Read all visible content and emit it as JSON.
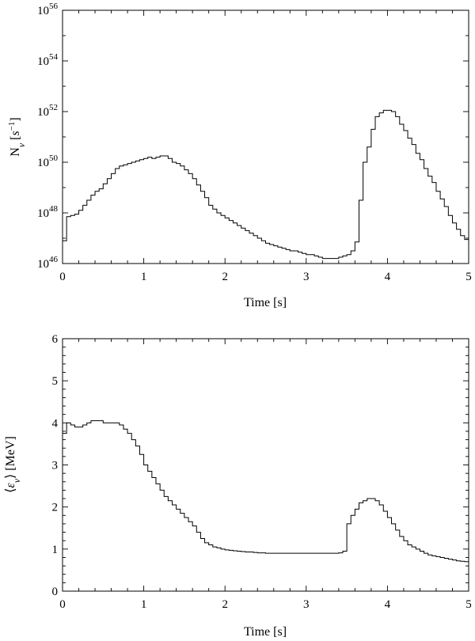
{
  "chart_data": [
    {
      "type": "line",
      "step": true,
      "scale_y": "log",
      "xlabel": "Time [s]",
      "ylabel_html": "N<tspan font-style='italic' baseline-shift='sub' font-size='12'>ν</tspan> [<tspan font-style='italic'>s</tspan><tspan baseline-shift='super' font-size='11'>−1</tspan>]",
      "xlim": [
        0,
        5
      ],
      "ylim_exp": [
        46,
        56
      ],
      "xticks": [
        0,
        1,
        2,
        3,
        4,
        5
      ],
      "yticks_exp": [
        46,
        48,
        50,
        52,
        54,
        56
      ],
      "grid": false,
      "series": [
        {
          "step_width": 0.05,
          "x": [
            0.0,
            0.05,
            0.1,
            0.15,
            0.2,
            0.25,
            0.3,
            0.35,
            0.4,
            0.45,
            0.5,
            0.55,
            0.6,
            0.65,
            0.7,
            0.75,
            0.8,
            0.85,
            0.9,
            0.95,
            1.0,
            1.05,
            1.1,
            1.15,
            1.2,
            1.25,
            1.3,
            1.35,
            1.4,
            1.45,
            1.5,
            1.55,
            1.6,
            1.65,
            1.7,
            1.75,
            1.8,
            1.85,
            1.9,
            1.95,
            2.0,
            2.05,
            2.1,
            2.15,
            2.2,
            2.25,
            2.3,
            2.35,
            2.4,
            2.45,
            2.5,
            2.55,
            2.6,
            2.65,
            2.7,
            2.75,
            2.8,
            2.85,
            2.9,
            2.95,
            3.0,
            3.05,
            3.1,
            3.15,
            3.2,
            3.25,
            3.3,
            3.35,
            3.4,
            3.45,
            3.5,
            3.55,
            3.6,
            3.65,
            3.7,
            3.75,
            3.8,
            3.85,
            3.9,
            3.95,
            4.0,
            4.05,
            4.1,
            4.15,
            4.2,
            4.25,
            4.3,
            4.35,
            4.4,
            4.45,
            4.5,
            4.55,
            4.6,
            4.65,
            4.7,
            4.75,
            4.8,
            4.85,
            4.9,
            4.95
          ],
          "log10_y": [
            46.9,
            47.85,
            47.9,
            47.95,
            48.1,
            48.3,
            48.5,
            48.7,
            48.85,
            48.95,
            49.15,
            49.35,
            49.55,
            49.75,
            49.85,
            49.9,
            49.95,
            50.0,
            50.05,
            50.1,
            50.15,
            50.2,
            50.15,
            50.2,
            50.25,
            50.25,
            50.15,
            50.0,
            49.95,
            49.85,
            49.7,
            49.55,
            49.35,
            49.1,
            48.85,
            48.6,
            48.3,
            48.15,
            48.0,
            47.9,
            47.8,
            47.7,
            47.6,
            47.5,
            47.4,
            47.3,
            47.2,
            47.1,
            47.0,
            46.9,
            46.8,
            46.75,
            46.7,
            46.65,
            46.6,
            46.55,
            46.5,
            46.5,
            46.45,
            46.4,
            46.35,
            46.35,
            46.3,
            46.25,
            46.2,
            46.2,
            46.2,
            46.2,
            46.25,
            46.3,
            46.35,
            46.5,
            46.85,
            48.5,
            50.0,
            50.6,
            51.3,
            51.8,
            51.95,
            52.05,
            52.05,
            52.0,
            51.8,
            51.5,
            51.25,
            50.95,
            50.7,
            50.35,
            50.1,
            49.75,
            49.45,
            49.2,
            48.85,
            48.55,
            48.25,
            47.9,
            47.6,
            47.35,
            47.1,
            46.95
          ]
        }
      ]
    },
    {
      "type": "line",
      "step": true,
      "xlabel": "Time [s]",
      "ylabel_html": "⟨<tspan font-style='italic'>ε</tspan><tspan font-style='italic' baseline-shift='sub' font-size='12'>ν</tspan>⟩ [MeV]",
      "xlim": [
        0,
        5
      ],
      "ylim": [
        0,
        6
      ],
      "xticks": [
        0,
        1,
        2,
        3,
        4,
        5
      ],
      "yticks": [
        0,
        1,
        2,
        3,
        4,
        5,
        6
      ],
      "grid": false,
      "series": [
        {
          "step_width": 0.05,
          "x": [
            0.0,
            0.05,
            0.1,
            0.15,
            0.2,
            0.25,
            0.3,
            0.35,
            0.4,
            0.45,
            0.5,
            0.55,
            0.6,
            0.65,
            0.7,
            0.75,
            0.8,
            0.85,
            0.9,
            0.95,
            1.0,
            1.05,
            1.1,
            1.15,
            1.2,
            1.25,
            1.3,
            1.35,
            1.4,
            1.45,
            1.5,
            1.55,
            1.6,
            1.65,
            1.7,
            1.75,
            1.8,
            1.85,
            1.9,
            1.95,
            2.0,
            2.05,
            2.1,
            2.15,
            2.2,
            2.25,
            2.3,
            2.35,
            2.4,
            2.45,
            2.5,
            2.55,
            2.6,
            2.65,
            2.7,
            2.75,
            2.8,
            2.85,
            2.9,
            2.95,
            3.0,
            3.05,
            3.1,
            3.15,
            3.2,
            3.25,
            3.3,
            3.35,
            3.4,
            3.45,
            3.5,
            3.55,
            3.6,
            3.65,
            3.7,
            3.75,
            3.8,
            3.85,
            3.9,
            3.95,
            4.0,
            4.05,
            4.1,
            4.15,
            4.2,
            4.25,
            4.3,
            4.35,
            4.4,
            4.45,
            4.5,
            4.55,
            4.6,
            4.65,
            4.7,
            4.75,
            4.8,
            4.85,
            4.9,
            4.95
          ],
          "y": [
            3.75,
            4.0,
            3.95,
            3.9,
            3.9,
            3.95,
            4.0,
            4.05,
            4.05,
            4.05,
            4.0,
            4.0,
            4.0,
            4.0,
            3.95,
            3.85,
            3.75,
            3.6,
            3.45,
            3.25,
            3.0,
            2.85,
            2.7,
            2.55,
            2.4,
            2.25,
            2.15,
            2.05,
            1.95,
            1.85,
            1.75,
            1.65,
            1.55,
            1.4,
            1.25,
            1.15,
            1.1,
            1.05,
            1.03,
            1.0,
            0.98,
            0.97,
            0.96,
            0.95,
            0.94,
            0.93,
            0.93,
            0.92,
            0.91,
            0.91,
            0.9,
            0.9,
            0.9,
            0.9,
            0.9,
            0.9,
            0.9,
            0.9,
            0.9,
            0.9,
            0.9,
            0.9,
            0.9,
            0.9,
            0.9,
            0.9,
            0.9,
            0.9,
            0.91,
            0.95,
            1.6,
            1.8,
            1.95,
            2.1,
            2.15,
            2.2,
            2.2,
            2.15,
            2.05,
            1.9,
            1.75,
            1.6,
            1.45,
            1.3,
            1.2,
            1.1,
            1.05,
            1.0,
            0.95,
            0.9,
            0.86,
            0.84,
            0.82,
            0.8,
            0.78,
            0.76,
            0.74,
            0.72,
            0.71,
            0.7
          ]
        }
      ]
    }
  ]
}
